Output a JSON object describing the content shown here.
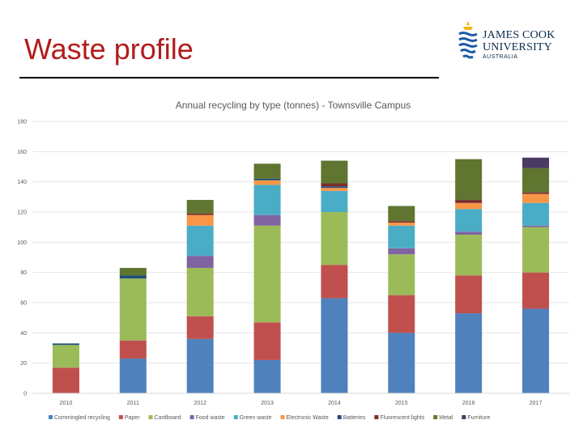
{
  "slide": {
    "title": "Waste profile"
  },
  "logo": {
    "line1": "JAMES COOK",
    "line2": "UNIVERSITY",
    "line3": "AUSTRALIA"
  },
  "colors": {
    "title": "#b31b1b",
    "series": [
      "#4f81bd",
      "#c0504d",
      "#9bbb59",
      "#8064a2",
      "#4bacc6",
      "#f79646",
      "#1f4e79",
      "#7b2e2c",
      "#5f7530",
      "#4a3b63"
    ]
  },
  "chart_data": {
    "type": "bar",
    "stacked": true,
    "title": "Annual recycling by type (tonnes) - Townsville Campus",
    "categories": [
      "2010",
      "2011",
      "2012",
      "2013",
      "2014",
      "2015",
      "2016",
      "2017"
    ],
    "ylim": [
      0,
      180
    ],
    "yticks": [
      0,
      20,
      40,
      60,
      80,
      100,
      120,
      140,
      160,
      180
    ],
    "grid": true,
    "legend": "bottom",
    "series": [
      {
        "name": "Commingled recycling",
        "values": [
          0,
          23,
          36,
          22,
          63,
          40,
          53,
          56
        ]
      },
      {
        "name": "Paper",
        "values": [
          17,
          12,
          15,
          25,
          22,
          25,
          25,
          24
        ]
      },
      {
        "name": "Cardboard",
        "values": [
          15,
          41,
          32,
          64,
          35,
          27,
          27,
          30
        ]
      },
      {
        "name": "Food waste",
        "values": [
          0,
          0,
          8,
          7,
          0,
          4,
          2,
          1
        ]
      },
      {
        "name": "Green waste",
        "values": [
          0,
          0,
          20,
          20,
          14,
          15,
          15,
          15
        ]
      },
      {
        "name": "Electronic Waste",
        "values": [
          0,
          0,
          7,
          3,
          2,
          2,
          4,
          6
        ]
      },
      {
        "name": "Batteries",
        "values": [
          1,
          2,
          0,
          1,
          1,
          0,
          0,
          0
        ]
      },
      {
        "name": "Fluorescent lights",
        "values": [
          0,
          0,
          1,
          0,
          2,
          1,
          2,
          1
        ]
      },
      {
        "name": "Metal",
        "values": [
          0,
          5,
          9,
          10,
          15,
          10,
          27,
          16
        ]
      },
      {
        "name": "Furniture",
        "values": [
          0,
          0,
          0,
          0,
          0,
          0,
          0,
          7
        ]
      }
    ]
  }
}
